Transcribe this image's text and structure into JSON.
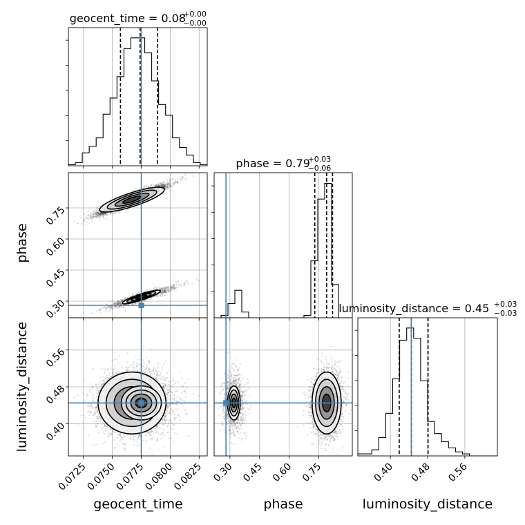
{
  "chart_data": {
    "type": "corner",
    "parameters": [
      "geocent_time",
      "phase",
      "luminosity_distance"
    ],
    "truths": {
      "geocent_time": 0.0775,
      "phase": 0.28,
      "luminosity_distance": 0.445
    },
    "ranges": {
      "geocent_time": [
        0.0712,
        0.0832
      ],
      "phase": [
        0.22,
        0.92
      ],
      "luminosity_distance": [
        0.33,
        0.63
      ]
    },
    "ticks": {
      "geocent_time": [
        {
          "v": 0.0725,
          "label": "0.0725"
        },
        {
          "v": 0.075,
          "label": "0.0750"
        },
        {
          "v": 0.0775,
          "label": "0.0775"
        },
        {
          "v": 0.08,
          "label": "0.0800"
        },
        {
          "v": 0.0825,
          "label": "0.0825"
        }
      ],
      "phase": [
        {
          "v": 0.3,
          "label": "0.30"
        },
        {
          "v": 0.45,
          "label": "0.45"
        },
        {
          "v": 0.6,
          "label": "0.60"
        },
        {
          "v": 0.75,
          "label": "0.75"
        }
      ],
      "luminosity_distance": [
        {
          "v": 0.4,
          "label": "0.40"
        },
        {
          "v": 0.48,
          "label": "0.48"
        },
        {
          "v": 0.56,
          "label": "0.56"
        }
      ]
    },
    "titles": [
      {
        "param": "geocent_time",
        "text": "geocent_time = 0.08",
        "sup": "+0.00",
        "sub": "−0.00"
      },
      {
        "param": "phase",
        "text": "phase = 0.79",
        "sup": "+0.03",
        "sub": "−0.06"
      },
      {
        "param": "luminosity_distance",
        "text": "luminosity_distance = 0.45",
        "sup": "+0.03",
        "sub": "−0.03"
      }
    ],
    "quantiles": {
      "geocent_time": [
        0.0757,
        0.0774,
        0.0789
      ],
      "phase": [
        0.73,
        0.79,
        0.82
      ],
      "luminosity_distance": [
        0.419,
        0.445,
        0.481
      ]
    },
    "histograms": {
      "geocent_time": {
        "edges": [
          0.0712,
          0.0718,
          0.0724,
          0.073,
          0.0736,
          0.0742,
          0.0748,
          0.0754,
          0.076,
          0.0766,
          0.0772,
          0.0778,
          0.0784,
          0.079,
          0.0796,
          0.0802,
          0.0808,
          0.0814,
          0.082,
          0.0826,
          0.0832
        ],
        "counts": [
          1,
          3,
          12,
          18,
          26,
          48,
          63,
          83,
          109,
          119,
          119,
          105,
          79,
          57,
          47,
          26,
          17,
          10,
          3,
          1
        ]
      },
      "phase": {
        "edges": [
          0.22,
          0.255,
          0.29,
          0.325,
          0.36,
          0.395,
          0.43,
          0.465,
          0.5,
          0.535,
          0.57,
          0.605,
          0.64,
          0.675,
          0.71,
          0.745,
          0.78,
          0.815,
          0.85,
          0.885,
          0.92
        ],
        "counts": [
          0,
          5,
          30,
          58,
          12,
          0,
          0,
          0,
          0,
          0,
          0,
          0,
          0,
          5,
          120,
          250,
          283,
          70,
          0,
          0
        ]
      },
      "luminosity_distance": {
        "edges": [
          0.33,
          0.345,
          0.36,
          0.375,
          0.39,
          0.405,
          0.42,
          0.435,
          0.45,
          0.465,
          0.48,
          0.495,
          0.51,
          0.525,
          0.54,
          0.555,
          0.57,
          0.585,
          0.6,
          0.615,
          0.63
        ],
        "counts": [
          1,
          1,
          3,
          9,
          21,
          38,
          57,
          63,
          58,
          37,
          17,
          11,
          7,
          4,
          2,
          1,
          0,
          0,
          0,
          0
        ]
      }
    },
    "posterior_modes": [
      {
        "geocent_time": 0.0767,
        "phase": 0.79,
        "luminosity_distance": 0.445,
        "sd_t": 0.0014,
        "sd_phi": 0.035,
        "sd_d": 0.032,
        "weight": 0.82
      },
      {
        "geocent_time": 0.0775,
        "phase": 0.32,
        "luminosity_distance": 0.445,
        "sd_t": 0.0015,
        "sd_phi": 0.028,
        "sd_d": 0.032,
        "weight": 0.18
      }
    ],
    "truth_color": "#4682b4",
    "grid": true
  }
}
